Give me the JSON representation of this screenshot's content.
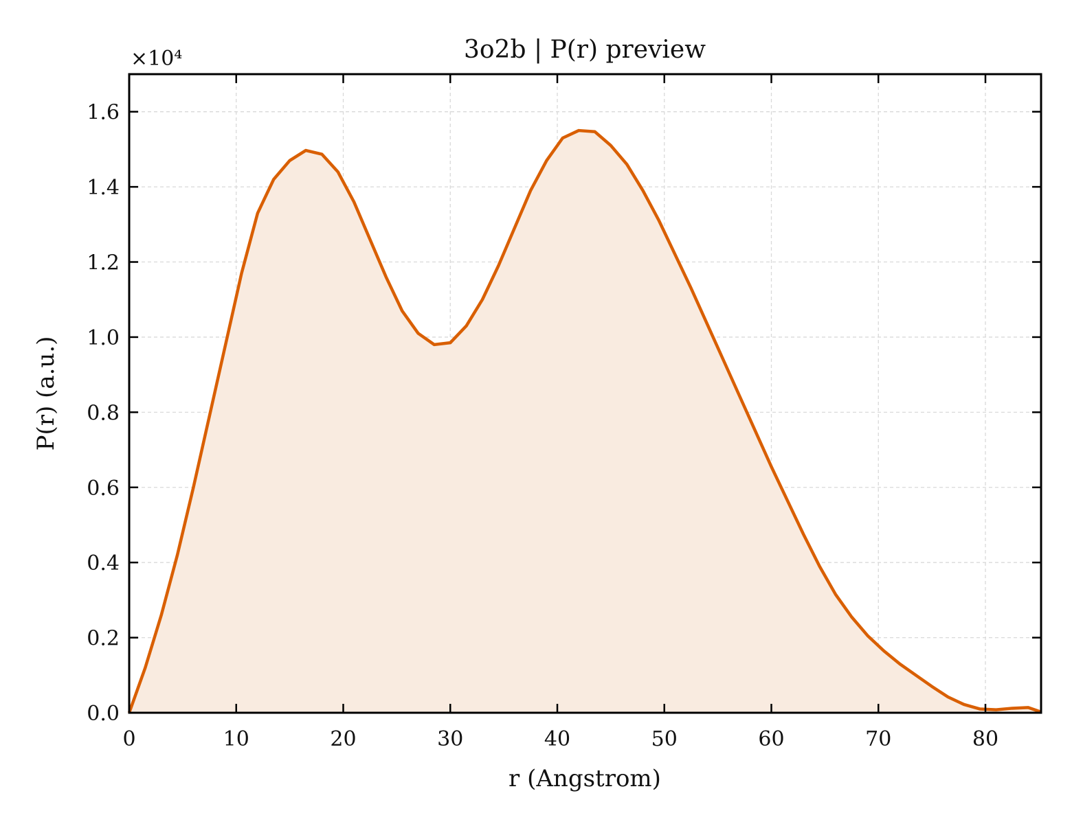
{
  "chart_data": {
    "type": "area",
    "title": "3o2b | P(r) preview",
    "xlabel": "r (Angstrom)",
    "ylabel": "P(r) (a.u.)",
    "y_scale_label": "×10⁴",
    "xlim": [
      0,
      85.2
    ],
    "ylim": [
      0,
      1.7
    ],
    "xticks": [
      0,
      10,
      20,
      30,
      40,
      50,
      60,
      70,
      80
    ],
    "yticks": [
      0.0,
      0.2,
      0.4,
      0.6,
      0.8,
      1.0,
      1.2,
      1.4,
      1.6
    ],
    "xtick_labels": [
      "0",
      "10",
      "20",
      "30",
      "40",
      "50",
      "60",
      "70",
      "80"
    ],
    "ytick_labels": [
      "0.0",
      "0.2",
      "0.4",
      "0.6",
      "0.8",
      "1.0",
      "1.2",
      "1.4",
      "1.6"
    ],
    "grid": true,
    "legend": "none",
    "colors": {
      "line": "#d95f02",
      "fill": "#f9ebe0",
      "grid": "#d9d9d9",
      "axes": "#000000"
    },
    "series": [
      {
        "x": [
          0,
          1.5,
          3.0,
          4.5,
          6.0,
          7.5,
          9.0,
          10.5,
          12.0,
          13.5,
          15.0,
          16.5,
          18.0,
          19.5,
          21.0,
          22.5,
          24.0,
          25.5,
          27.0,
          28.5,
          30.0,
          31.5,
          33.0,
          34.5,
          36.0,
          37.5,
          39.0,
          40.5,
          42.0,
          43.5,
          45.0,
          46.5,
          48.0,
          49.5,
          51.0,
          52.5,
          54.0,
          55.5,
          57.0,
          58.5,
          60.0,
          61.5,
          63.0,
          64.5,
          66.0,
          67.5,
          69.0,
          70.5,
          72.0,
          73.5,
          75.0,
          76.5,
          78.0,
          79.5,
          81.0,
          82.5,
          84.0,
          85.2
        ],
        "y": [
          0.0,
          0.12,
          0.26,
          0.42,
          0.6,
          0.79,
          0.98,
          1.17,
          1.33,
          1.42,
          1.47,
          1.497,
          1.487,
          1.44,
          1.36,
          1.26,
          1.16,
          1.07,
          1.01,
          0.98,
          0.985,
          1.03,
          1.1,
          1.19,
          1.29,
          1.39,
          1.47,
          1.53,
          1.55,
          1.547,
          1.51,
          1.46,
          1.39,
          1.31,
          1.22,
          1.13,
          1.035,
          0.94,
          0.845,
          0.75,
          0.655,
          0.565,
          0.475,
          0.39,
          0.315,
          0.255,
          0.205,
          0.165,
          0.13,
          0.1,
          0.07,
          0.042,
          0.022,
          0.01,
          0.008,
          0.012,
          0.014,
          0.002
        ]
      }
    ]
  }
}
